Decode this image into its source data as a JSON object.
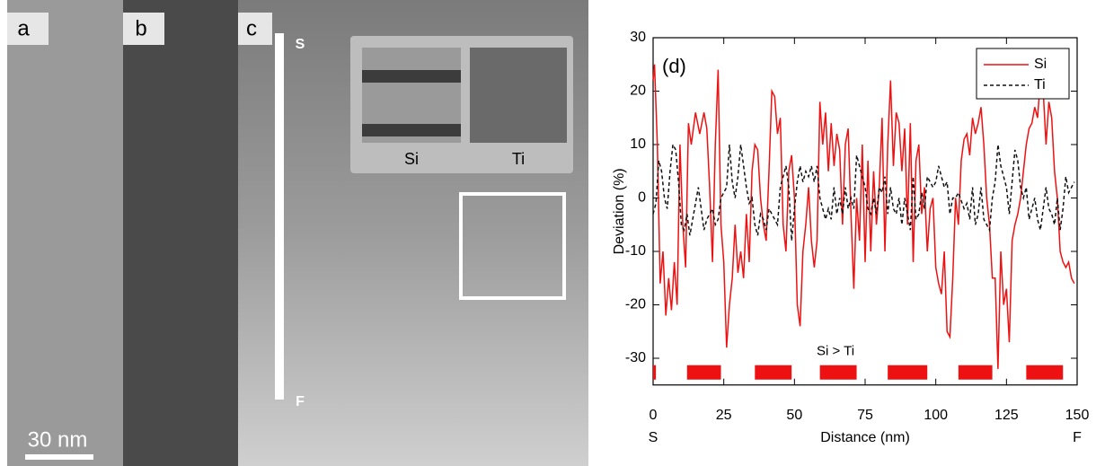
{
  "images": {
    "labels": [
      "a",
      "b",
      "c"
    ],
    "line_start": "S",
    "line_end": "F",
    "inset_labels": [
      "Si",
      "Ti"
    ],
    "scale_bar": "30 nm"
  },
  "chart_data": {
    "type": "line",
    "panel_label": "(d)",
    "x_label": "Distance (nm)",
    "y_label": "Deviation (%)",
    "x_start_label": "S",
    "x_end_label": "F",
    "xlim": [
      0,
      150
    ],
    "xticks": [
      0,
      25,
      50,
      75,
      100,
      125,
      150
    ],
    "ylim": [
      -35,
      30
    ],
    "yticks": [
      -30,
      -20,
      -10,
      0,
      10,
      20,
      30
    ],
    "legend": "upper right",
    "region_label": "Si > Ti",
    "region_color": "#ee1111",
    "regions": [
      {
        "start": 0,
        "end": 1
      },
      {
        "start": 12,
        "end": 24
      },
      {
        "start": 36,
        "end": 49
      },
      {
        "start": 59,
        "end": 72
      },
      {
        "start": 83,
        "end": 97
      },
      {
        "start": 108,
        "end": 120
      },
      {
        "start": 132,
        "end": 145
      }
    ],
    "series": [
      {
        "name": "Si",
        "color": "#ee1111",
        "line_style": "solid",
        "x": [
          0,
          0.5,
          1.5,
          2.5,
          3.5,
          4.5,
          5.5,
          6.5,
          7.5,
          8.5,
          9.5,
          10.5,
          11.5,
          12.5,
          13.5,
          15,
          16.5,
          18,
          19,
          20,
          21,
          22,
          23,
          24,
          25,
          26,
          27,
          28,
          29,
          30,
          31,
          32,
          33,
          34,
          35,
          36,
          37,
          38,
          39,
          40,
          41,
          42,
          43,
          44,
          45,
          46,
          47,
          48,
          49,
          50,
          51,
          52,
          53,
          54,
          55,
          56,
          57,
          58,
          59,
          60,
          61,
          62,
          63,
          64,
          65,
          66,
          67,
          68,
          69,
          70,
          71,
          72,
          73,
          74,
          75,
          76,
          77,
          78,
          79,
          80,
          81,
          82,
          83,
          84,
          85,
          86,
          87,
          88,
          89,
          90,
          91,
          92,
          93,
          94,
          95,
          96,
          97,
          98,
          99,
          100,
          101,
          102,
          103,
          104,
          105,
          106,
          107,
          108,
          109,
          110,
          111,
          112,
          113,
          114,
          115,
          116,
          117,
          118,
          119,
          120,
          121,
          122,
          123,
          124,
          125,
          126,
          127,
          128,
          129,
          130,
          131,
          132,
          133,
          134,
          135,
          136,
          137,
          138,
          139,
          140,
          141,
          142,
          143,
          144,
          145,
          146,
          147,
          148,
          149
        ],
        "values": [
          22,
          25,
          10,
          -16,
          -10,
          -22,
          -15,
          -21,
          -12,
          -20,
          10,
          -5,
          -13,
          14,
          10,
          16,
          12,
          16,
          13,
          2,
          -12,
          10,
          24,
          -5,
          -12,
          -28,
          -20,
          -15,
          -5,
          -14,
          -10,
          -15,
          -3,
          -12,
          5,
          10,
          9,
          0,
          -5,
          -8,
          5,
          20,
          19,
          12,
          15,
          -5,
          -10,
          5,
          8,
          0,
          -20,
          -24,
          -10,
          -5,
          2,
          -8,
          -13,
          -8,
          18,
          10,
          16,
          5,
          14,
          6,
          12,
          9,
          -5,
          10,
          13,
          -3,
          -17,
          0,
          -8,
          10,
          -12,
          7,
          -10,
          5,
          -5,
          2,
          15,
          -10,
          10,
          22,
          6,
          16,
          14,
          5,
          13,
          -5,
          14,
          -12,
          7,
          10,
          -3,
          2,
          -10,
          -2,
          0,
          -13,
          -16,
          -18,
          -10,
          -25,
          -26,
          -15,
          0,
          -5,
          7,
          11,
          12,
          8,
          15,
          12,
          14,
          17,
          10,
          0,
          -5,
          -15,
          -15,
          -32,
          -10,
          -20,
          -17,
          -27,
          -8,
          -5,
          -3,
          0,
          5,
          10,
          13,
          14,
          17,
          15,
          22,
          20,
          10,
          18,
          15,
          5,
          0,
          -10,
          -12,
          -13,
          -12,
          -15,
          -16
        ]
      },
      {
        "name": "Ti",
        "color": "#111111",
        "line_style": "dashed",
        "x": [
          0,
          1,
          2,
          3,
          4,
          5,
          6,
          7,
          8,
          9,
          10,
          11,
          12,
          13,
          14,
          16,
          18,
          19,
          21,
          22,
          23,
          24,
          26,
          27,
          28,
          29,
          30,
          31,
          32,
          33,
          34,
          35,
          36,
          37,
          38,
          39,
          40,
          41,
          42,
          43,
          44,
          45,
          46,
          47,
          48,
          49,
          50,
          51,
          52,
          53,
          54,
          55,
          56,
          57,
          58,
          59,
          60,
          61,
          62,
          63,
          64,
          65,
          66,
          67,
          68,
          69,
          70,
          71,
          72,
          73,
          74,
          75,
          76,
          77,
          78,
          79,
          80,
          81,
          82,
          83,
          84,
          85,
          86,
          87,
          88,
          89,
          90,
          91,
          92,
          93,
          94,
          95,
          96,
          97,
          98,
          99,
          100,
          101,
          102,
          103,
          104,
          105,
          106,
          107,
          108,
          110,
          111,
          112,
          113,
          114,
          115,
          116,
          117,
          118,
          119,
          120,
          121,
          122,
          123,
          124,
          125,
          126,
          127,
          128,
          129,
          130,
          131,
          132,
          133,
          134,
          135,
          136,
          137,
          138,
          139,
          140,
          141,
          142,
          143,
          144,
          145,
          146,
          147,
          148,
          149
        ],
        "values": [
          -3,
          -1,
          7,
          5,
          0,
          -2,
          5,
          10,
          9,
          3,
          -5,
          -6,
          -3,
          -7,
          -4,
          2,
          -6,
          -4,
          -2,
          -5,
          -4,
          0,
          2,
          10,
          3,
          0,
          4,
          10,
          6,
          2,
          -1,
          0,
          -5,
          -7,
          -3,
          -4,
          -6,
          -2,
          -3,
          -4,
          -5,
          2,
          4,
          6,
          2,
          -8,
          -2,
          3,
          6,
          3,
          5,
          4,
          6,
          3,
          6,
          0,
          -2,
          -4,
          -2,
          -4,
          2,
          -3,
          0,
          -3,
          2,
          -2,
          0,
          -2,
          8,
          6,
          4,
          2,
          -2,
          -3,
          0,
          -3,
          2,
          1,
          4,
          -3,
          2,
          -2,
          -3,
          0,
          -5,
          0,
          -3,
          -6,
          4,
          -4,
          -3,
          1,
          -2,
          4,
          3,
          2,
          3,
          6,
          4,
          2,
          3,
          -3,
          0,
          0,
          1,
          -2,
          -1,
          -4,
          2,
          -5,
          -3,
          2,
          -4,
          -5,
          -6,
          0,
          3,
          10,
          6,
          4,
          2,
          -3,
          3,
          9,
          7,
          2,
          0,
          2,
          -4,
          -2,
          0,
          -4,
          -6,
          -2,
          2,
          -2,
          -3,
          -5,
          0,
          -6,
          -2,
          4,
          1,
          2,
          3
        ]
      }
    ]
  }
}
